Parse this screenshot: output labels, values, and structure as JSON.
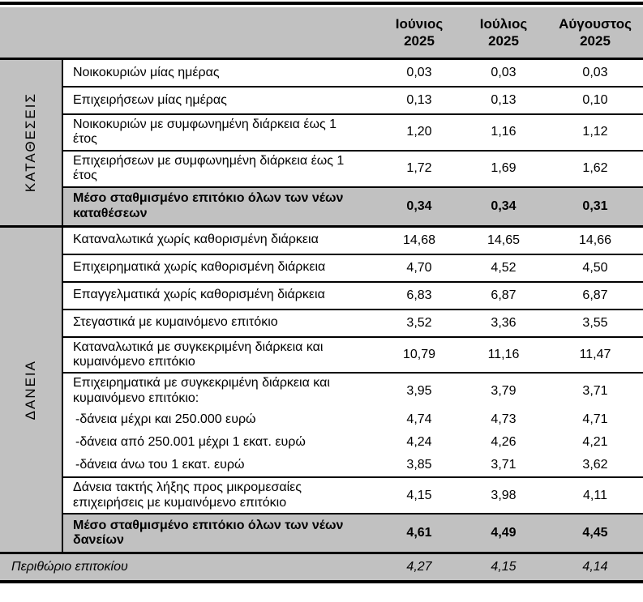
{
  "colors": {
    "header_bg": "#c1c1c1",
    "summary_row_bg": "#c1c1c1",
    "footer_bg": "#c1c1c1",
    "border": "#000000",
    "text": "#000000"
  },
  "header": {
    "columns": [
      {
        "month": "Ιούνιος",
        "year": "2025"
      },
      {
        "month": "Ιούλιος",
        "year": "2025"
      },
      {
        "month": "Αύγουστος",
        "year": "2025"
      }
    ]
  },
  "sections": [
    {
      "id": "deposits",
      "label": "ΚΑΤΑΘΕΣΕΙΣ",
      "rows": [
        {
          "label": "Νοικοκυριών μίας ημέρας",
          "values": [
            "0,03",
            "0,03",
            "0,03"
          ],
          "style": "normal"
        },
        {
          "label": "Επιχειρήσεων μίας ημέρας",
          "values": [
            "0,13",
            "0,13",
            "0,10"
          ],
          "style": "normal"
        },
        {
          "label": "Νοικοκυριών με συμφωνημένη διάρκεια έως 1 έτος",
          "values": [
            "1,20",
            "1,16",
            "1,12"
          ],
          "style": "normal"
        },
        {
          "label": "Επιχειρήσεων με συμφωνημένη διάρκεια έως 1 έτος",
          "values": [
            "1,72",
            "1,69",
            "1,62"
          ],
          "style": "normal"
        },
        {
          "label": "Μέσο σταθμισμένο επιτόκιο όλων των νέων καταθέσεων",
          "values": [
            "0,34",
            "0,34",
            "0,31"
          ],
          "style": "summary"
        }
      ]
    },
    {
      "id": "loans",
      "label": "ΔΑΝΕΙΑ",
      "rows": [
        {
          "label": "Καταναλωτικά χωρίς καθορισμένη διάρκεια",
          "values": [
            "14,68",
            "14,65",
            "14,66"
          ],
          "style": "normal"
        },
        {
          "label": "Επιχειρηματικά χωρίς καθορισμένη διάρκεια",
          "values": [
            "4,70",
            "4,52",
            "4,50"
          ],
          "style": "normal"
        },
        {
          "label": "Επαγγελματικά χωρίς καθορισμένη διάρκεια",
          "values": [
            "6,83",
            "6,87",
            "6,87"
          ],
          "style": "normal"
        },
        {
          "label": "Στεγαστικά με κυμαινόμενο επιτόκιο",
          "values": [
            "3,52",
            "3,36",
            "3,55"
          ],
          "style": "normal"
        },
        {
          "label": "Καταναλωτικά με συγκεκριμένη διάρκεια και κυμαινόμενο επιτόκιο",
          "values": [
            "10,79",
            "11,16",
            "11,47"
          ],
          "style": "normal"
        },
        {
          "label": "Επιχειρηματικά με συγκεκριμένη διάρκεια και κυμαινόμενο επιτόκιο:",
          "values": [
            "3,95",
            "3,79",
            "3,71"
          ],
          "style": "normal"
        },
        {
          "label": "-δάνεια μέχρι και 250.000 ευρώ",
          "values": [
            "4,74",
            "4,73",
            "4,71"
          ],
          "style": "sub"
        },
        {
          "label": "-δάνεια από 250.001 μέχρι 1 εκατ. ευρώ",
          "values": [
            "4,24",
            "4,26",
            "4,21"
          ],
          "style": "sub"
        },
        {
          "label": "-δάνεια άνω του 1 εκατ. ευρώ",
          "values": [
            "3,85",
            "3,71",
            "3,62"
          ],
          "style": "sub"
        },
        {
          "label": "Δάνεια τακτής λήξης προς μικρομεσαίες επιχειρήσεις με κυμαινόμενο επιτόκιο",
          "values": [
            "4,15",
            "3,98",
            "4,11"
          ],
          "style": "normal"
        },
        {
          "label": "Μέσο σταθμισμένο επιτόκιο όλων των νέων δανείων",
          "values": [
            "4,61",
            "4,49",
            "4,45"
          ],
          "style": "summary"
        }
      ]
    }
  ],
  "footer": {
    "label": "Περιθώριο επιτοκίου",
    "values": [
      "4,27",
      "4,15",
      "4,14"
    ]
  }
}
